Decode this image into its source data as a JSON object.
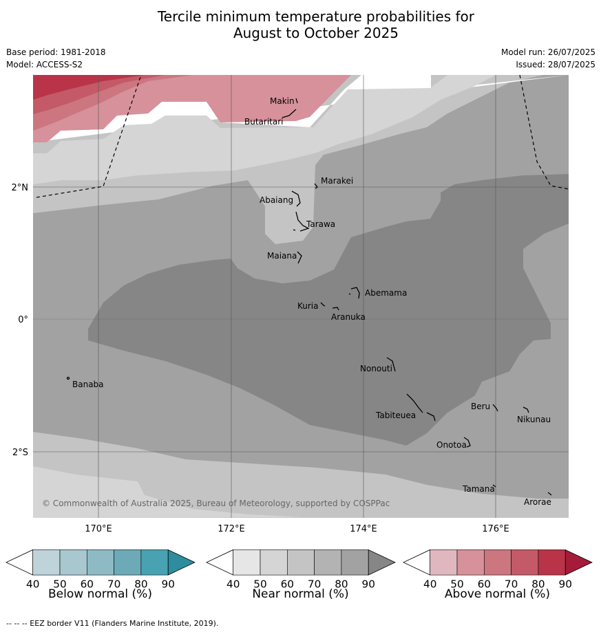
{
  "title_line1": "Tercile minimum temperature probabilities for",
  "title_line2": "August to October 2025",
  "meta": {
    "base_period": "Base period: 1981-2018",
    "model": "Model: ACCESS-S2",
    "model_run": "Model run: 26/07/2025",
    "issued": "Issued: 28/07/2025"
  },
  "map": {
    "lat_ticks": [
      "2°N",
      "0°",
      "2°S"
    ],
    "lon_ticks": [
      "170°E",
      "172°E",
      "174°E",
      "176°E"
    ],
    "copyright": "© Commonwealth of Australia 2025, Bureau of Meteorology, supported by COSPPac",
    "places": [
      "Makin",
      "Butaritari",
      "Marakei",
      "Abaiang",
      "Tarawa",
      "Maiana",
      "Abemama",
      "Kuria",
      "Aranuka",
      "Banaba",
      "Nonouti",
      "Tabiteuea",
      "Beru",
      "Nikunau",
      "Onotoa",
      "Tamana",
      "Arorae"
    ]
  },
  "colorbars": {
    "ticks": [
      "40",
      "50",
      "60",
      "70",
      "80",
      "90"
    ],
    "below": {
      "title": "Below normal (%)",
      "colors": [
        "#ffffff",
        "#bed3da",
        "#a8c7cf",
        "#8ebac5",
        "#6daab7",
        "#48a2b2",
        "#2d8d9e"
      ]
    },
    "near": {
      "title": "Near normal (%)",
      "colors": [
        "#ffffff",
        "#e6e6e6",
        "#d5d5d5",
        "#c4c4c4",
        "#b3b3b3",
        "#a2a2a2",
        "#868686"
      ]
    },
    "above": {
      "title": "Above normal (%)",
      "colors": [
        "#ffffff",
        "#e1b7bf",
        "#d6919a",
        "#cc7680",
        "#c45a67",
        "#b93449",
        "#a51c38"
      ]
    }
  },
  "footer": "--  --  -- EEZ border V11 (Flanders Marine Institute, 2019)."
}
